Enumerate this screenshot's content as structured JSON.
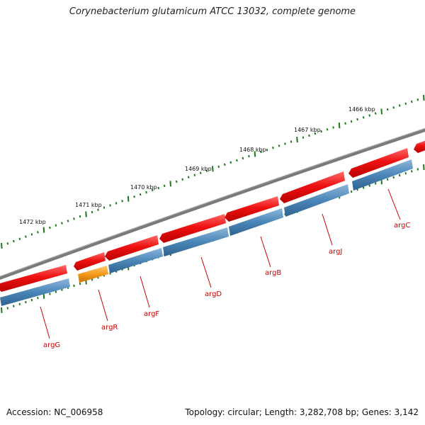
{
  "title": "Corynebacterium glutamicum ATCC 13032, complete genome",
  "footer": {
    "accession": "Accession: NC_006958",
    "stats": "Topology: circular; Length: 3,282,708 bp; Genes: 3,142"
  },
  "colors": {
    "backbone": "#7a7a7a",
    "gene_red": "#ee1111",
    "gene_blue": "#4a86b8",
    "gene_orange": "#f39a1a",
    "tick_green": "#1f7a1f",
    "label_red": "#cc0000"
  },
  "kbp_ticks": [
    {
      "label": "1472 kbp"
    },
    {
      "label": "1471 kbp"
    },
    {
      "label": "1470 kbp"
    },
    {
      "label": "1469 kbp"
    },
    {
      "label": "1468 kbp"
    },
    {
      "label": "1467 kbp"
    },
    {
      "label": "1466 kbp"
    }
  ],
  "genes": [
    {
      "name": "argG"
    },
    {
      "name": "argR"
    },
    {
      "name": "argF"
    },
    {
      "name": "argD"
    },
    {
      "name": "argB"
    },
    {
      "name": "argJ"
    },
    {
      "name": "argC"
    }
  ]
}
